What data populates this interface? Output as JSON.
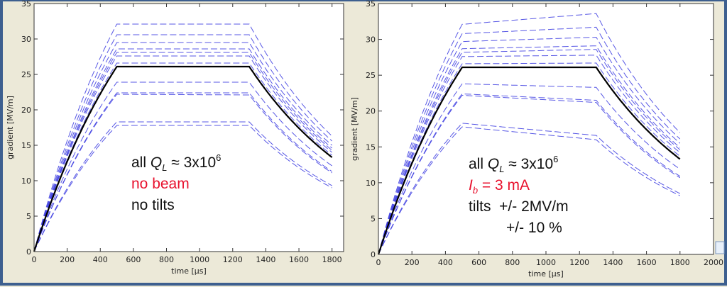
{
  "chart_data": [
    {
      "type": "line",
      "xlabel": "time [µs]",
      "ylabel": "gradient [MV/m]",
      "xlim": [
        0,
        1870
      ],
      "ylim": [
        0,
        35
      ],
      "xticks": [
        0,
        200,
        400,
        600,
        800,
        1000,
        1200,
        1400,
        1600,
        1800
      ],
      "yticks": [
        0,
        5,
        10,
        15,
        20,
        25,
        30,
        35
      ],
      "grid": false,
      "line_color": "#3a3ae0",
      "reference_color": "#000000",
      "annotations": {
        "line1_prefix": "all ",
        "line1_q": "Q",
        "line1_sub": "L",
        "line1_suffix": " ≈ 3x10",
        "line1_sup": "6",
        "line2": "no beam",
        "line3": "no tilts"
      },
      "series": [
        {
          "style": "dashed",
          "points": [
            [
              0,
              0
            ],
            [
              500,
              32.1
            ],
            [
              1300,
              32.1
            ],
            [
              1800,
              16.3
            ]
          ]
        },
        {
          "style": "dashed",
          "points": [
            [
              0,
              0
            ],
            [
              500,
              30.6
            ],
            [
              1300,
              30.6
            ],
            [
              1800,
              15.6
            ]
          ]
        },
        {
          "style": "dashed",
          "points": [
            [
              0,
              0
            ],
            [
              500,
              29.5
            ],
            [
              1300,
              29.5
            ],
            [
              1800,
              15.0
            ]
          ]
        },
        {
          "style": "dashed",
          "points": [
            [
              0,
              0
            ],
            [
              500,
              28.6
            ],
            [
              1300,
              28.6
            ],
            [
              1800,
              14.6
            ]
          ]
        },
        {
          "style": "dashed",
          "points": [
            [
              0,
              0
            ],
            [
              500,
              28.1
            ],
            [
              1300,
              28.1
            ],
            [
              1800,
              14.3
            ]
          ]
        },
        {
          "style": "dashed",
          "points": [
            [
              0,
              0
            ],
            [
              500,
              27.6
            ],
            [
              1300,
              27.6
            ],
            [
              1800,
              14.0
            ]
          ]
        },
        {
          "style": "dashed",
          "points": [
            [
              0,
              0
            ],
            [
              500,
              26.6
            ],
            [
              1300,
              26.6
            ],
            [
              1800,
              13.6
            ]
          ]
        },
        {
          "style": "dashed",
          "points": [
            [
              0,
              0
            ],
            [
              500,
              23.9
            ],
            [
              1300,
              23.9
            ],
            [
              1800,
              12.1
            ]
          ]
        },
        {
          "style": "dashed",
          "points": [
            [
              0,
              0
            ],
            [
              500,
              22.4
            ],
            [
              1300,
              22.4
            ],
            [
              1800,
              11.3
            ]
          ]
        },
        {
          "style": "dashed",
          "points": [
            [
              0,
              0
            ],
            [
              500,
              22.2
            ],
            [
              1300,
              22.1
            ],
            [
              1800,
              11.1
            ]
          ]
        },
        {
          "style": "dashed",
          "points": [
            [
              0,
              0
            ],
            [
              500,
              18.3
            ],
            [
              1300,
              18.3
            ],
            [
              1800,
              9.3
            ]
          ]
        },
        {
          "style": "dashed",
          "points": [
            [
              0,
              0
            ],
            [
              500,
              17.8
            ],
            [
              1300,
              17.8
            ],
            [
              1800,
              9.0
            ]
          ]
        },
        {
          "style": "solid",
          "points": [
            [
              0,
              0
            ],
            [
              500,
              26.1
            ],
            [
              1300,
              26.1
            ],
            [
              1800,
              13.3
            ]
          ]
        }
      ]
    },
    {
      "type": "line",
      "xlabel": "time [µs]",
      "ylabel": "gradient [MV/m]",
      "xlim": [
        0,
        2000
      ],
      "ylim": [
        0,
        35
      ],
      "xticks": [
        0,
        200,
        400,
        600,
        800,
        1000,
        1200,
        1400,
        1600,
        1800,
        2000
      ],
      "yticks": [
        0,
        5,
        10,
        15,
        20,
        25,
        30,
        35
      ],
      "grid": false,
      "line_color": "#3a3ae0",
      "reference_color": "#000000",
      "annotations": {
        "line1_prefix": "all ",
        "line1_q": "Q",
        "line1_sub": "L",
        "line1_suffix": " ≈ 3x10",
        "line1_sup": "6",
        "line2_i": "I",
        "line2_sub": "b",
        "line2_rest": " = 3 mA",
        "line3": "tilts  +/- 2MV/m",
        "line4": "+/- 10 %"
      },
      "series": [
        {
          "style": "dashed",
          "points": [
            [
              0,
              0
            ],
            [
              500,
              32.1
            ],
            [
              1300,
              33.6
            ],
            [
              1800,
              17.0
            ]
          ]
        },
        {
          "style": "dashed",
          "points": [
            [
              0,
              0
            ],
            [
              500,
              30.8
            ],
            [
              1300,
              31.7
            ],
            [
              1800,
              16.1
            ]
          ]
        },
        {
          "style": "dashed",
          "points": [
            [
              0,
              0
            ],
            [
              500,
              29.7
            ],
            [
              1300,
              30.3
            ],
            [
              1800,
              15.5
            ]
          ]
        },
        {
          "style": "dashed",
          "points": [
            [
              0,
              0
            ],
            [
              500,
              28.7
            ],
            [
              1300,
              29.1
            ],
            [
              1800,
              14.9
            ]
          ]
        },
        {
          "style": "dashed",
          "points": [
            [
              0,
              0
            ],
            [
              500,
              28.2
            ],
            [
              1300,
              28.6
            ],
            [
              1800,
              14.6
            ]
          ]
        },
        {
          "style": "dashed",
          "points": [
            [
              0,
              0
            ],
            [
              500,
              27.6
            ],
            [
              1300,
              27.8
            ],
            [
              1800,
              14.2
            ]
          ]
        },
        {
          "style": "dashed",
          "points": [
            [
              0,
              0
            ],
            [
              500,
              26.6
            ],
            [
              1300,
              26.7
            ],
            [
              1800,
              13.7
            ]
          ]
        },
        {
          "style": "dashed",
          "points": [
            [
              0,
              0
            ],
            [
              500,
              23.8
            ],
            [
              1300,
              23.3
            ],
            [
              1800,
              11.9
            ]
          ]
        },
        {
          "style": "dashed",
          "points": [
            [
              0,
              0
            ],
            [
              500,
              22.4
            ],
            [
              1300,
              21.5
            ],
            [
              1800,
              10.9
            ]
          ]
        },
        {
          "style": "dashed",
          "points": [
            [
              0,
              0
            ],
            [
              500,
              22.2
            ],
            [
              1300,
              21.2
            ],
            [
              1800,
              10.7
            ]
          ]
        },
        {
          "style": "dashed",
          "points": [
            [
              0,
              0
            ],
            [
              500,
              18.3
            ],
            [
              1300,
              16.6
            ],
            [
              1800,
              8.5
            ]
          ]
        },
        {
          "style": "dashed",
          "points": [
            [
              0,
              0
            ],
            [
              500,
              17.8
            ],
            [
              1300,
              16.0
            ],
            [
              1800,
              8.2
            ]
          ]
        },
        {
          "style": "solid",
          "points": [
            [
              0,
              0
            ],
            [
              500,
              26.1
            ],
            [
              1300,
              26.1
            ],
            [
              1800,
              13.3
            ]
          ]
        }
      ]
    }
  ]
}
